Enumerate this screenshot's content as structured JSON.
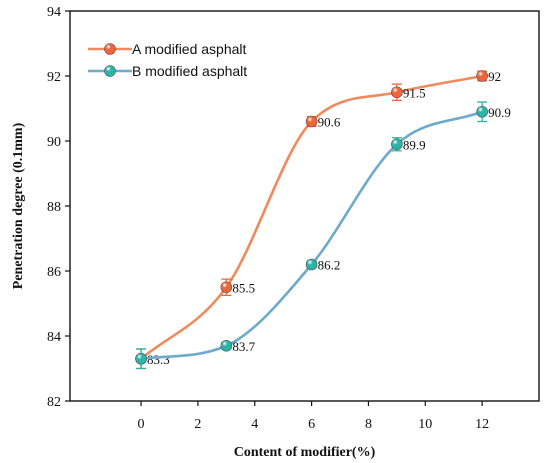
{
  "chart_data": {
    "type": "line",
    "xlabel": "Content of modifier(%)",
    "ylabel": "Penetration degree (0.1mm)",
    "xlim": [
      -2.5,
      14
    ],
    "ylim": [
      82,
      94
    ],
    "x_ticks": [
      0,
      2,
      4,
      6,
      8,
      10,
      12
    ],
    "y_ticks": [
      82,
      84,
      86,
      88,
      90,
      92,
      94
    ],
    "grid": false,
    "legend_position": "top-left",
    "series": [
      {
        "name": "A modified asphalt",
        "color": "#f08a5c",
        "marker_color": "#f0643a",
        "x": [
          0,
          3,
          6,
          9,
          12
        ],
        "y": [
          83.3,
          85.5,
          90.6,
          91.5,
          92
        ],
        "error": [
          0.3,
          0.25,
          0.15,
          0.25,
          0.15
        ],
        "labels": [
          "83.3",
          "85.5",
          "90.6",
          "91.5",
          "92"
        ]
      },
      {
        "name": "B modified asphalt",
        "color": "#6fa9cc",
        "marker_color": "#2bb5a8",
        "x": [
          0,
          3,
          6,
          9,
          12
        ],
        "y": [
          83.3,
          83.7,
          86.2,
          89.9,
          90.9
        ],
        "error": [
          0.3,
          0.1,
          0.1,
          0.2,
          0.3
        ],
        "labels": [
          "",
          "83.7",
          "86.2",
          "89.9",
          "90.9"
        ]
      }
    ]
  }
}
